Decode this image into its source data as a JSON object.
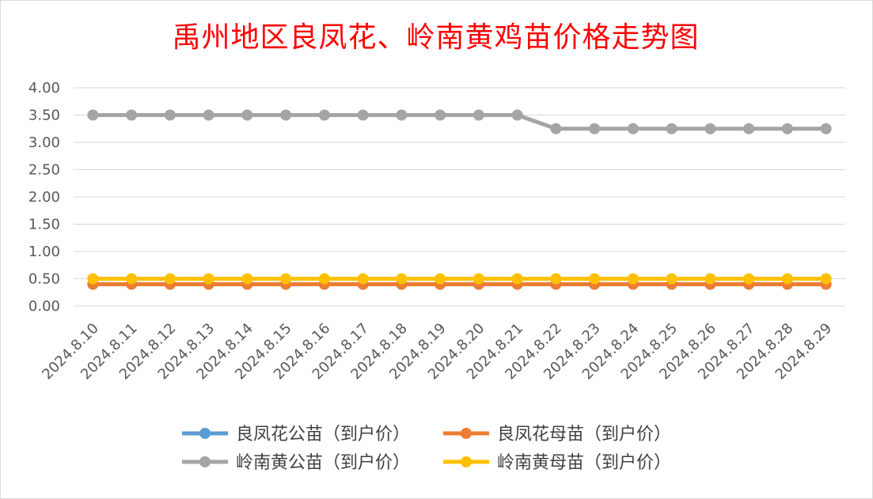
{
  "chart_data": {
    "type": "line",
    "title": "禹州地区良凤花、岭南黄鸡苗价格走势图",
    "xlabel": "",
    "ylabel": "",
    "ylim": [
      0,
      4
    ],
    "y_ticks": [
      "0.00",
      "0.50",
      "1.00",
      "1.50",
      "2.00",
      "2.50",
      "3.00",
      "3.50",
      "4.00"
    ],
    "grid": true,
    "legend_position": "bottom",
    "categories": [
      "2024.8.10",
      "2024.8.11",
      "2024.8.12",
      "2024.8.13",
      "2024.8.14",
      "2024.8.15",
      "2024.8.16",
      "2024.8.17",
      "2024.8.18",
      "2024.8.19",
      "2024.8.20",
      "2024.8.21",
      "2024.8.22",
      "2024.8.23",
      "2024.8.24",
      "2024.8.25",
      "2024.8.26",
      "2024.8.27",
      "2024.8.28",
      "2024.8.29"
    ],
    "series": [
      {
        "name": "良凤花公苗（到户价）",
        "color": "#5b9bd5",
        "values": [
          0.4,
          0.4,
          0.4,
          0.4,
          0.4,
          0.4,
          0.4,
          0.4,
          0.4,
          0.4,
          0.4,
          0.4,
          0.4,
          0.4,
          0.4,
          0.4,
          0.4,
          0.4,
          0.4,
          0.4
        ]
      },
      {
        "name": "良凤花母苗（到户价）",
        "color": "#ed7d31",
        "values": [
          0.4,
          0.4,
          0.4,
          0.4,
          0.4,
          0.4,
          0.4,
          0.4,
          0.4,
          0.4,
          0.4,
          0.4,
          0.4,
          0.4,
          0.4,
          0.4,
          0.4,
          0.4,
          0.4,
          0.4
        ]
      },
      {
        "name": "岭南黄公苗（到户价）",
        "color": "#a5a5a5",
        "values": [
          3.5,
          3.5,
          3.5,
          3.5,
          3.5,
          3.5,
          3.5,
          3.5,
          3.5,
          3.5,
          3.5,
          3.5,
          3.25,
          3.25,
          3.25,
          3.25,
          3.25,
          3.25,
          3.25,
          3.25
        ]
      },
      {
        "name": "岭南黄母苗（到户价）",
        "color": "#ffc000",
        "values": [
          0.5,
          0.5,
          0.5,
          0.5,
          0.5,
          0.5,
          0.5,
          0.5,
          0.5,
          0.5,
          0.5,
          0.5,
          0.5,
          0.5,
          0.5,
          0.5,
          0.5,
          0.5,
          0.5,
          0.5
        ]
      }
    ]
  }
}
